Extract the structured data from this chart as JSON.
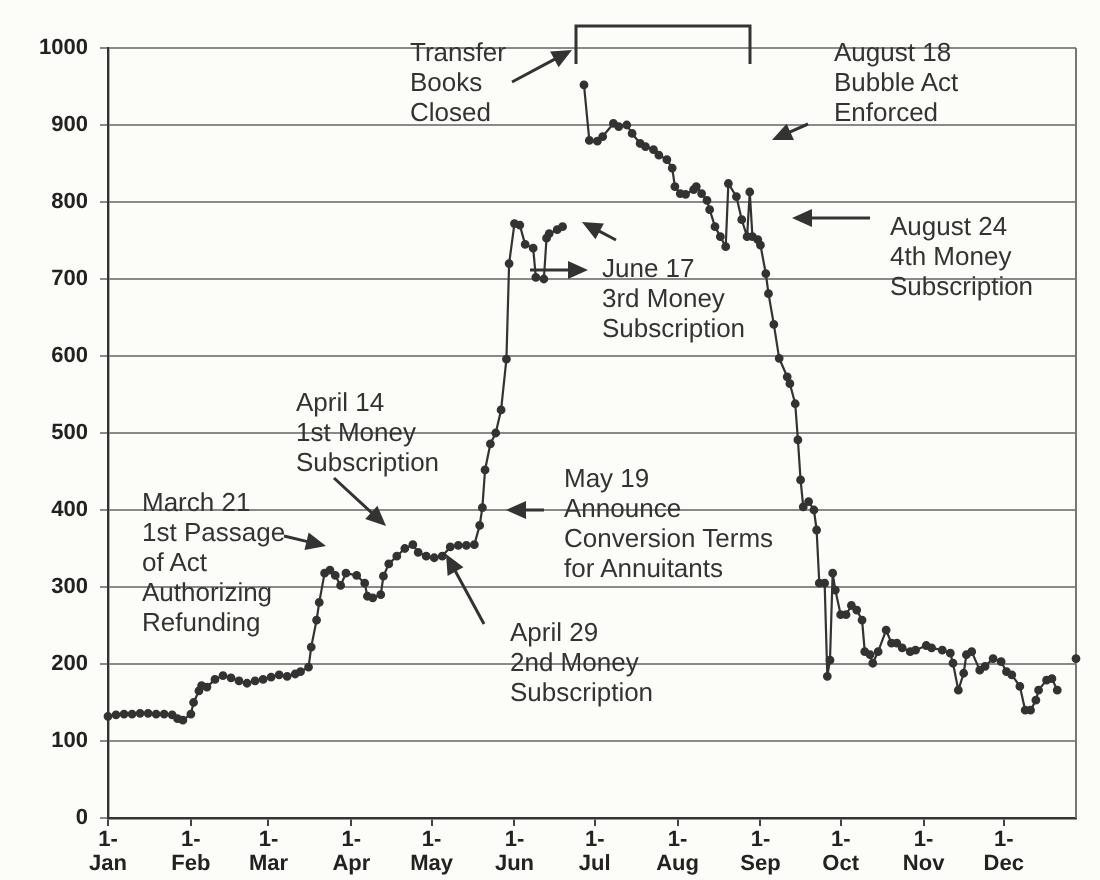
{
  "chart_data": {
    "type": "line",
    "color": "#333333",
    "marker": "circle",
    "grid": "y",
    "x": [
      "--01-01",
      "--01-04",
      "--01-07",
      "--01-10",
      "--01-13",
      "--01-16",
      "--01-19",
      "--01-22",
      "--01-25",
      "--01-27",
      "--01-29",
      "--02-01",
      "--02-02",
      "--02-04",
      "--02-05",
      "--02-07",
      "--02-10",
      "--02-13",
      "--02-16",
      "--02-19",
      "--02-22",
      "--02-25",
      "--02-28",
      "--03-02",
      "--03-05",
      "--03-08",
      "--03-11",
      "--03-13",
      "--03-16",
      "--03-17",
      "--03-19",
      "--03-20",
      "--03-22",
      "--03-24",
      "--03-26",
      "--03-28",
      "--03-30",
      "--04-03",
      "--04-06",
      "--04-07",
      "--04-09",
      "--04-12",
      "--04-13",
      "--04-15",
      "--04-18",
      "--04-21",
      "--04-24",
      "--04-26",
      "--04-29",
      "--05-02",
      "--05-05",
      "--05-08",
      "--05-11",
      "--05-14",
      "--05-17",
      "--05-19",
      "--05-20",
      "--05-21",
      "--05-23",
      "--05-25",
      "--05-27",
      "--05-29",
      "--05-30",
      "--06-01",
      "--06-03",
      "--06-05",
      "--06-08",
      "--06-09",
      "--06-12",
      "--06-13",
      "--06-14",
      "--06-17",
      "--06-19",
      "--06-22",
      "--06-27",
      "--06-29",
      "--07-02",
      "--07-04",
      "--07-08",
      "--07-10",
      "--07-13",
      "--07-15",
      "--07-18",
      "--07-20",
      "--07-23",
      "--07-25",
      "--07-28",
      "--07-30",
      "--07-31",
      "--08-02",
      "--08-04",
      "--08-07",
      "--08-08",
      "--08-10",
      "--08-12",
      "--08-13",
      "--08-15",
      "--08-17",
      "--08-19",
      "--08-20",
      "--08-23",
      "--08-25",
      "--08-27",
      "--08-28",
      "--08-29",
      "--08-31",
      "--09-01",
      "--09-03",
      "--09-04",
      "--09-06",
      "--09-08",
      "--09-11",
      "--09-12",
      "--09-14",
      "--09-15",
      "--09-16",
      "--09-17",
      "--09-19",
      "--09-21",
      "--09-22",
      "--09-23",
      "--09-25",
      "--09-26",
      "--09-27",
      "--09-28",
      "--09-29",
      "--10-01",
      "--10-03",
      "--10-05",
      "--10-07",
      "--10-09",
      "--10-10",
      "--10-12",
      "--10-13",
      "--10-15",
      "--10-18",
      "--10-20",
      "--10-22",
      "--10-24",
      "--10-27",
      "--10-29",
      "--11-02",
      "--11-04",
      "--11-08",
      "--11-11",
      "--11-12",
      "--11-14",
      "--11-16",
      "--11-17",
      "--11-19",
      "--11-22",
      "--11-24",
      "--11-27",
      "--11-30",
      "--12-02",
      "--12-04",
      "--12-07",
      "--12-09",
      "--12-11",
      "--12-13",
      "--12-14",
      "--12-17",
      "--12-19",
      "--12-21",
      "--12-24",
      "--12-28"
    ],
    "values": [
      132,
      134,
      135,
      135,
      136,
      136,
      135,
      135,
      134,
      129,
      127,
      135,
      150,
      165,
      172,
      170,
      180,
      185,
      182,
      178,
      175,
      178,
      180,
      183,
      186,
      184,
      187,
      190,
      196,
      222,
      257,
      280,
      318,
      322,
      315,
      302,
      318,
      315,
      305,
      288,
      286,
      290,
      314,
      330,
      340,
      350,
      355,
      345,
      340,
      338,
      340,
      352,
      354,
      354,
      355,
      380,
      403,
      452,
      486,
      500,
      530,
      596,
      720,
      772,
      770,
      745,
      740,
      702,
      700,
      753,
      759,
      764,
      768,
      null,
      952,
      880,
      879,
      885,
      902,
      898,
      900,
      889,
      876,
      872,
      868,
      861,
      855,
      844,
      820,
      811,
      810,
      816,
      820,
      811,
      802,
      790,
      768,
      755,
      742,
      824,
      807,
      777,
      755,
      813,
      755,
      751,
      744,
      707,
      681,
      641,
      597,
      573,
      564,
      538,
      491,
      439,
      404,
      411,
      400,
      374,
      305,
      305,
      184,
      205,
      318,
      296,
      264,
      264,
      276,
      270,
      257,
      216,
      212,
      201,
      216,
      244,
      227,
      227,
      221,
      216,
      218,
      224,
      221,
      218,
      214,
      201,
      166,
      188,
      212,
      216,
      192,
      197,
      207,
      203,
      190,
      186,
      171,
      140,
      140,
      153,
      166,
      179,
      181,
      166,
      null,
      207
    ],
    "xlim": [
      "--01-01",
      "--12-28"
    ],
    "xticks": [
      {
        "value": "--01-01",
        "label": "1-Jan"
      },
      {
        "value": "--02-01",
        "label": "1-Feb"
      },
      {
        "value": "--03-01",
        "label": "1-Mar"
      },
      {
        "value": "--04-01",
        "label": "1-Apr"
      },
      {
        "value": "--05-01",
        "label": "1-May"
      },
      {
        "value": "--06-01",
        "label": "1-Jun"
      },
      {
        "value": "--07-01",
        "label": "1-Jul"
      },
      {
        "value": "--08-01",
        "label": "1-Aug"
      },
      {
        "value": "--09-01",
        "label": "1-Sep"
      },
      {
        "value": "--10-01",
        "label": "1-Oct"
      },
      {
        "value": "--11-01",
        "label": "1-Nov"
      },
      {
        "value": "--12-01",
        "label": "1-Dec"
      }
    ],
    "ylim": [
      0,
      1000
    ],
    "yticks": [
      0,
      100,
      200,
      300,
      400,
      500,
      600,
      700,
      800,
      900,
      1000
    ],
    "annotations": [
      "Transfer\nBooks\nClosed",
      "March 21\n1st Passage\nof Act\nAuthorizing\nRefunding",
      "April 14\n1st Money\nSubscription",
      "April 29\n2nd Money\nSubscription",
      "May 19\nAnnounce\nConversion Terms\nfor Annuitants",
      "June 17\n3rd Money\nSubscription",
      "August 18\nBubble Act\nEnforced",
      "August 24\n4th Money\nSubscription"
    ]
  }
}
